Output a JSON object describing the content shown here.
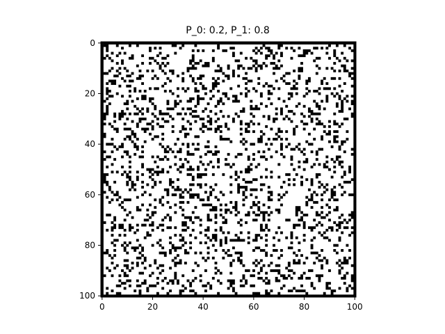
{
  "chart_data": {
    "type": "heatmap",
    "title": "P_0: 0.2, P_1: 0.8",
    "xlabel": "",
    "ylabel": "",
    "grid_size": 101,
    "xlim": [
      0,
      101
    ],
    "ylim": [
      101,
      0
    ],
    "x_ticks": [
      "0",
      "20",
      "40",
      "60",
      "80",
      "100"
    ],
    "y_ticks": [
      "0",
      "20",
      "40",
      "60",
      "80",
      "100"
    ],
    "value_map": {
      "0": "black",
      "1": "white"
    },
    "p_0": 0.2,
    "p_1": 0.8,
    "grid_on": false,
    "colors": {
      "zero": "#000000",
      "one": "#ffffff",
      "axes": "#000000"
    }
  }
}
